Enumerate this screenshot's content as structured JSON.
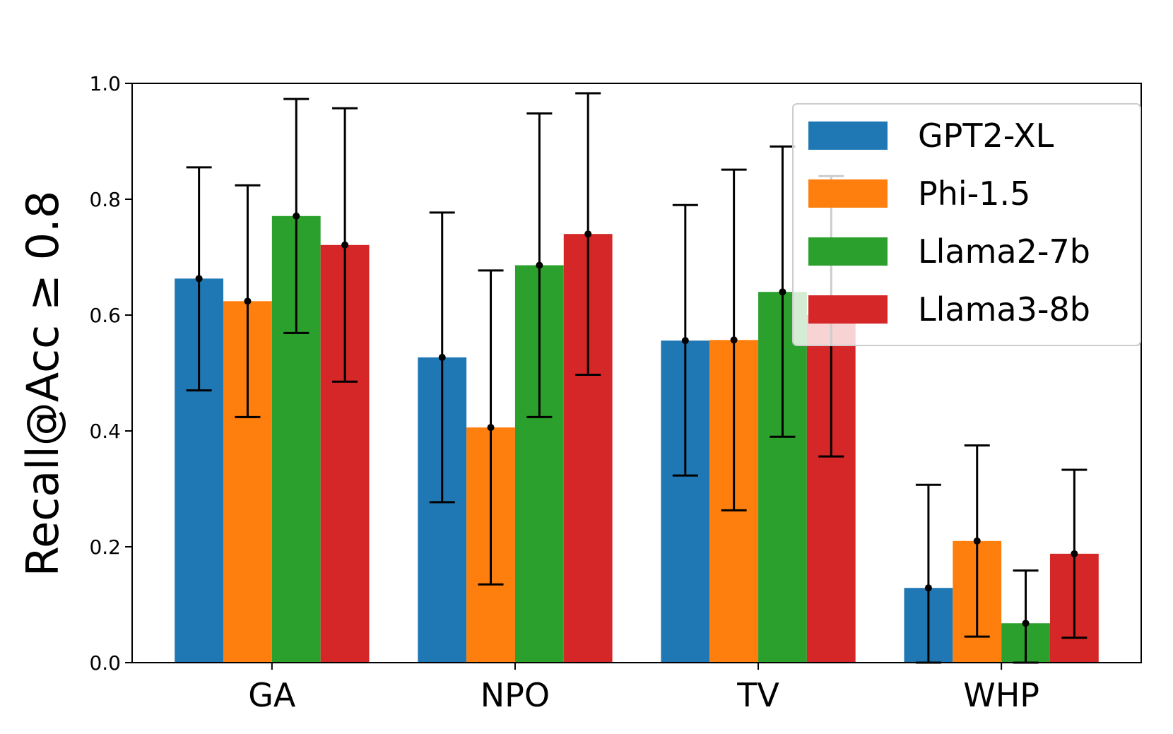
{
  "chart_data": {
    "type": "bar",
    "ylabel": "Recall@Acc ≥ 0.8",
    "xlabel": "",
    "title": "",
    "ylim": [
      0.0,
      1.0
    ],
    "yticks": [
      "0.0",
      "0.2",
      "0.4",
      "0.6",
      "0.8",
      "1.0"
    ],
    "categories": [
      "GA",
      "NPO",
      "TV",
      "WHP"
    ],
    "legend_position": "top-right",
    "grid": false,
    "series": [
      {
        "name": "GPT2-XL",
        "color": "#1f77b4",
        "values": [
          0.663,
          0.527,
          0.556,
          0.129
        ],
        "err_low": [
          0.47,
          0.277,
          0.323,
          0.0
        ],
        "err_high": [
          0.855,
          0.777,
          0.79,
          0.307
        ]
      },
      {
        "name": "Phi-1.5",
        "color": "#ff7f0e",
        "values": [
          0.624,
          0.406,
          0.557,
          0.21
        ],
        "err_low": [
          0.424,
          0.135,
          0.263,
          0.045
        ],
        "err_high": [
          0.824,
          0.677,
          0.851,
          0.375
        ]
      },
      {
        "name": "Llama2-7b",
        "color": "#2ca02c",
        "values": [
          0.771,
          0.686,
          0.64,
          0.068
        ],
        "err_low": [
          0.569,
          0.424,
          0.39,
          0.0
        ],
        "err_high": [
          0.973,
          0.948,
          0.891,
          0.159
        ]
      },
      {
        "name": "Llama3-8b",
        "color": "#d62728",
        "values": [
          0.721,
          0.74,
          0.6,
          0.188
        ],
        "err_low": [
          0.485,
          0.497,
          0.356,
          0.043
        ],
        "err_high": [
          0.957,
          0.983,
          0.84,
          0.333
        ]
      }
    ]
  }
}
